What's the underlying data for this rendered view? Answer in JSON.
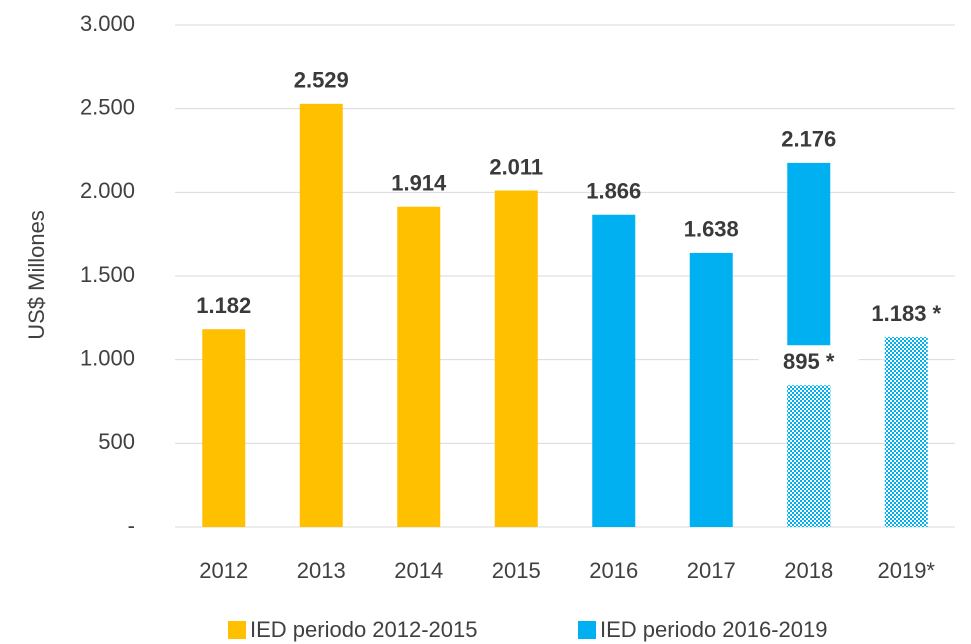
{
  "chart_data": {
    "type": "bar",
    "y_axis_label": "US$ Millones",
    "categories": [
      "2012",
      "2013",
      "2014",
      "2015",
      "2016",
      "2017",
      "2018",
      "2019*"
    ],
    "series": [
      {
        "name": "IED periodo 2012-2015",
        "color": "#ffc000",
        "values": [
          1182,
          2529,
          1914,
          2011,
          null,
          null,
          null,
          null
        ],
        "value_labels": [
          "1.182",
          "2.529",
          "1.914",
          "2.011",
          null,
          null,
          null,
          null
        ]
      },
      {
        "name": "IED periodo 2016-2019",
        "color": "#00b0f0",
        "values": [
          null,
          null,
          null,
          null,
          1866,
          1638,
          2176,
          null
        ],
        "value_labels": [
          null,
          null,
          null,
          null,
          "1.866",
          "1.638",
          "2.176",
          null
        ]
      }
    ],
    "preliminary": {
      "series": 1,
      "pattern": "checker",
      "values": [
        null,
        null,
        null,
        null,
        null,
        null,
        895,
        1183
      ],
      "value_labels": [
        null,
        null,
        null,
        null,
        null,
        null,
        "895 *",
        "1.183 *"
      ]
    },
    "ylim": [
      0,
      3000
    ],
    "yticks": [
      {
        "value": 0,
        "label": "-"
      },
      500,
      {
        "value": 1000,
        "label": "1.000"
      },
      {
        "value": 1500,
        "label": "1.500"
      },
      {
        "value": 2000,
        "label": "2.000"
      },
      {
        "value": 2500,
        "label": "2.500"
      },
      {
        "value": 3000,
        "label": "3.000"
      }
    ],
    "grid": true,
    "legend": "bottom"
  }
}
